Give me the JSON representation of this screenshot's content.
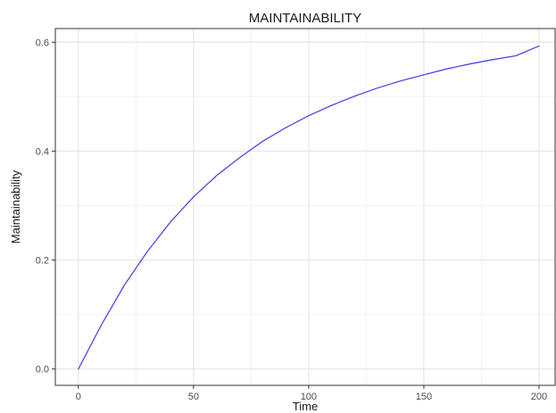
{
  "chart_data": {
    "type": "line",
    "title": "MAINTAINABILITY",
    "xlabel": "Time",
    "ylabel": "Maintainability",
    "xlim": [
      -10,
      207
    ],
    "ylim": [
      -0.03,
      0.625
    ],
    "x_ticks": [
      0,
      50,
      100,
      150,
      200
    ],
    "x_tick_labels": [
      "0",
      "50",
      "100",
      "150",
      "200"
    ],
    "y_ticks": [
      0.0,
      0.2,
      0.4,
      0.6
    ],
    "y_tick_labels": [
      "0.0",
      "0.2",
      "0.4",
      "0.6"
    ],
    "grid": true,
    "legend": "none",
    "series": [
      {
        "color": "#4a4ae6",
        "x": [
          0,
          10,
          20,
          30,
          40,
          50,
          60,
          70,
          80,
          90,
          100,
          110,
          120,
          130,
          140,
          150,
          160,
          170,
          180,
          190,
          200
        ],
        "y": [
          0.0,
          0.081,
          0.154,
          0.216,
          0.27,
          0.316,
          0.355,
          0.388,
          0.418,
          0.443,
          0.465,
          0.484,
          0.501,
          0.516,
          0.529,
          0.54,
          0.551,
          0.56,
          0.568,
          0.575,
          0.593
        ]
      }
    ]
  }
}
